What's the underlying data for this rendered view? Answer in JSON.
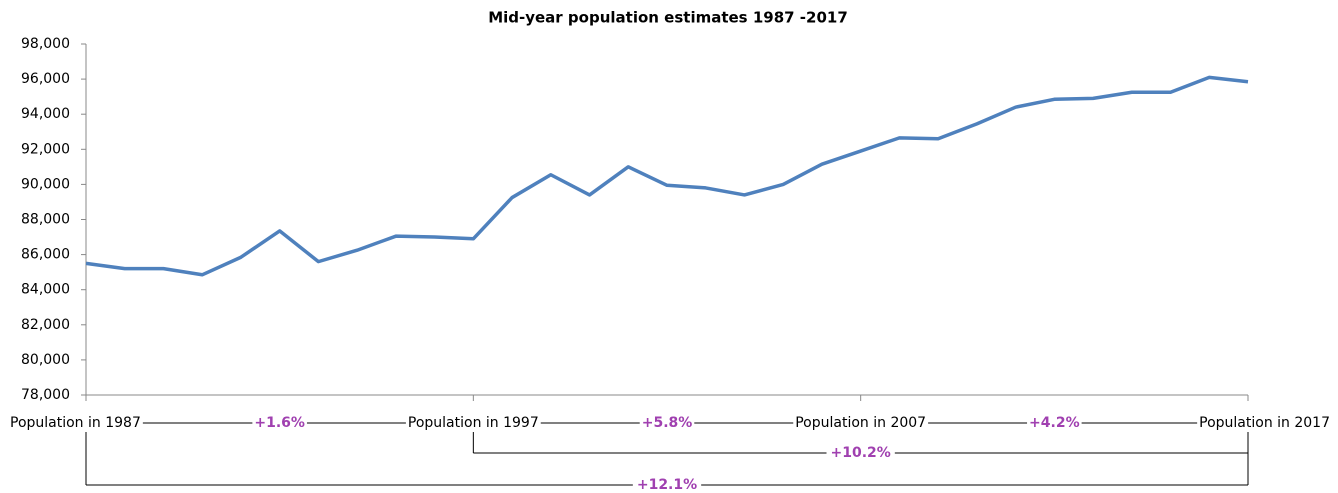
{
  "chart_data": {
    "type": "line",
    "title": "Mid-year population estimates 1987 -2017",
    "categories": [
      "Population in 1987",
      null,
      null,
      null,
      null,
      null,
      null,
      null,
      null,
      null,
      "Population in 1997",
      null,
      null,
      null,
      null,
      null,
      null,
      null,
      null,
      null,
      "Population in 2007",
      null,
      null,
      null,
      null,
      null,
      null,
      null,
      null,
      null,
      "Population in 2017"
    ],
    "series": [
      {
        "name": "Population",
        "color": "#4f81bd",
        "values": [
          85500,
          85200,
          85200,
          84850,
          85850,
          87350,
          85600,
          86250,
          87050,
          87000,
          86900,
          89250,
          90550,
          89400,
          91000,
          89950,
          89800,
          89400,
          90000,
          91150,
          91900,
          92650,
          92600,
          93450,
          94400,
          94850,
          94900,
          95250,
          95250,
          96100,
          95850
        ]
      }
    ],
    "ylim": [
      78000,
      98000
    ],
    "yticks": [
      {
        "value": 78000,
        "label": "78,000"
      },
      {
        "value": 80000,
        "label": "80,000"
      },
      {
        "value": 82000,
        "label": "82,000"
      },
      {
        "value": 84000,
        "label": "84,000"
      },
      {
        "value": 86000,
        "label": "86,000"
      },
      {
        "value": 88000,
        "label": "88,000"
      },
      {
        "value": 90000,
        "label": "90,000"
      },
      {
        "value": 92000,
        "label": "92,000"
      },
      {
        "value": 94000,
        "label": "94,000"
      },
      {
        "value": 96000,
        "label": "96,000"
      },
      {
        "value": 98000,
        "label": "98,000"
      }
    ],
    "grid": false,
    "annotations": [
      "+1.6%",
      "+5.8%",
      "+4.2%",
      "+10.2%",
      "+12.1%"
    ],
    "annotation_color": "#a040b0"
  }
}
